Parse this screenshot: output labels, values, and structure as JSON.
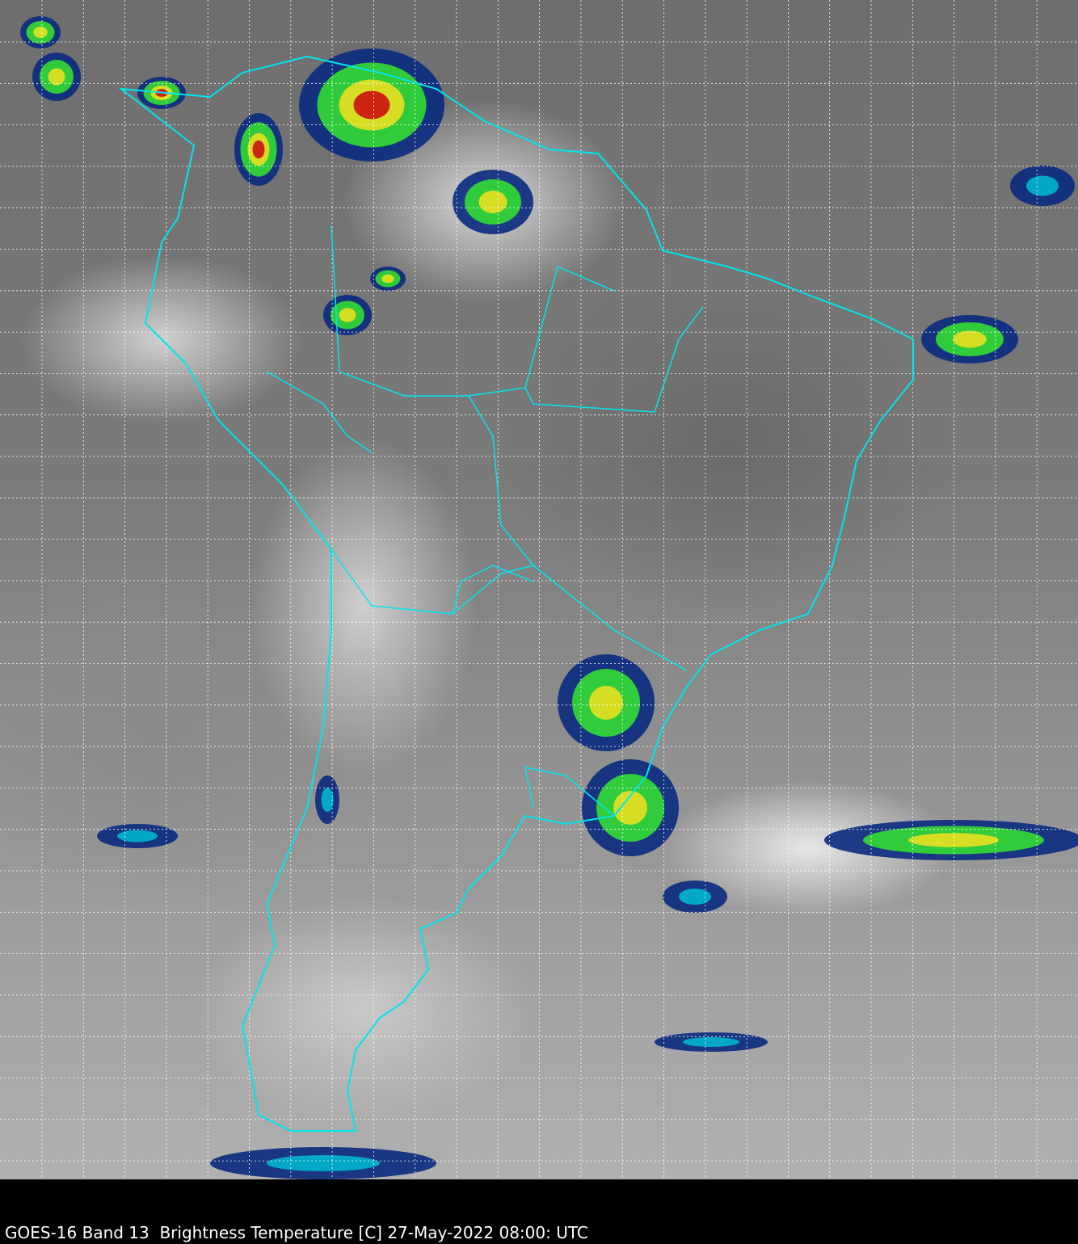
{
  "caption": "GOES-16 Band 13  Brightness Temperature [C] 27-May-2022 08:00: UTC",
  "colors": {
    "coastline": "#00e5ee",
    "grid": "#ffffff",
    "cold_cloud_green": "#33dd33",
    "cold_cloud_blue": "#0a2a80",
    "coldest_red": "#cc1111"
  }
}
